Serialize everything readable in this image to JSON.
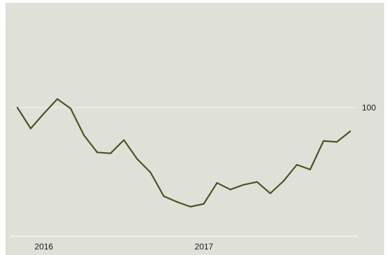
{
  "chart_data": {
    "type": "line",
    "title": "",
    "xlabel": "",
    "ylabel": "",
    "x_tick_labels": [
      "2016",
      "2017"
    ],
    "y_tick_labels": [
      "100"
    ],
    "y_tick_values": [
      100
    ],
    "ylim": [
      86.5,
      111
    ],
    "grid": true,
    "legend": "none",
    "colors": {
      "background": "#dfe1d8",
      "line": "#4a5126",
      "gridline": "#f4f5ef",
      "baseline": "#ffffff"
    },
    "series": [
      {
        "values": [
          100.0,
          97.8,
          99.4,
          100.9,
          99.9,
          97.1,
          95.3,
          95.2,
          96.6,
          94.6,
          93.2,
          90.7,
          90.1,
          89.6,
          89.9,
          92.1,
          91.4,
          91.9,
          92.2,
          91.0,
          92.3,
          94.0,
          93.5,
          96.5,
          96.4,
          97.5
        ]
      }
    ]
  }
}
